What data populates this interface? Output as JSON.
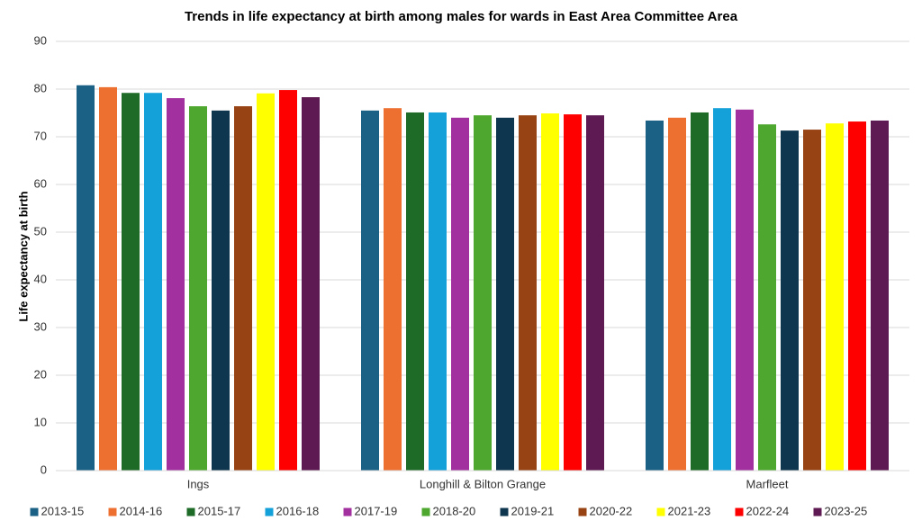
{
  "chart_data": {
    "type": "bar",
    "title": "Trends in life expectancy at birth among males for wards in East Area Committee Area",
    "y_label": "Life expectancy at birth",
    "categories": [
      "Ings",
      "Longhill & Bilton Grange",
      "Marfleet"
    ],
    "series": [
      {
        "name": "2013-15",
        "color": "#1a6185",
        "values": [
          80.8,
          75.5,
          73.4
        ]
      },
      {
        "name": "2014-16",
        "color": "#ed7031",
        "values": [
          80.4,
          76.0,
          74.0
        ]
      },
      {
        "name": "2015-17",
        "color": "#1e6b27",
        "values": [
          79.2,
          75.1,
          75.1
        ]
      },
      {
        "name": "2016-18",
        "color": "#14a0d9",
        "values": [
          79.2,
          75.1,
          76.0
        ]
      },
      {
        "name": "2017-19",
        "color": "#a2309f",
        "values": [
          78.1,
          74.0,
          75.7
        ]
      },
      {
        "name": "2018-20",
        "color": "#4ea72e",
        "values": [
          76.4,
          74.5,
          72.6
        ]
      },
      {
        "name": "2019-21",
        "color": "#0f364f",
        "values": [
          75.5,
          74.0,
          71.3
        ]
      },
      {
        "name": "2020-22",
        "color": "#974314",
        "values": [
          76.4,
          74.5,
          71.5
        ]
      },
      {
        "name": "2021-23",
        "color": "#ffff00",
        "values": [
          79.1,
          74.9,
          72.8
        ]
      },
      {
        "name": "2022-24",
        "color": "#ff0000",
        "values": [
          79.8,
          74.7,
          73.2
        ]
      },
      {
        "name": "2023-25",
        "color": "#5e1a52",
        "values": [
          78.3,
          74.5,
          73.4
        ]
      }
    ],
    "ylim": [
      0,
      90
    ],
    "yticks": [
      0,
      10,
      20,
      30,
      40,
      50,
      60,
      70,
      80,
      90
    ],
    "grid": true,
    "legend": "bottom"
  }
}
